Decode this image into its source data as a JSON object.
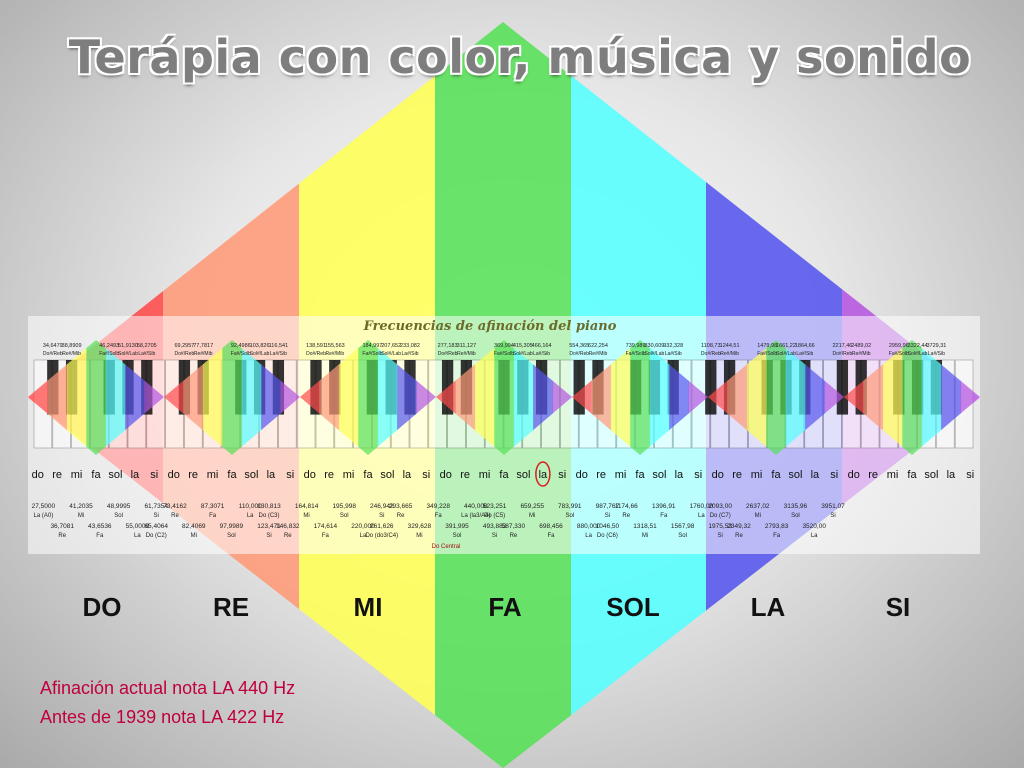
{
  "title": "Terápia con color, música y sonido",
  "piano_chart_title": "Frecuencias de afinación del piano",
  "color_bands": [
    "#ff4a4a",
    "#ff9a78",
    "#ffff55",
    "#55e055",
    "#55ffff",
    "#5555ee",
    "#b455e0"
  ],
  "note_labels": [
    "DO",
    "RE",
    "MI",
    "FA",
    "SOL",
    "LA",
    "SI"
  ],
  "octave_solfege": [
    "do",
    "re",
    "mi",
    "fa",
    "sol",
    "la",
    "si"
  ],
  "octaves": 7,
  "sharp_frequencies": [
    {
      "freq": "34,6479",
      "name": "Do#/Reb"
    },
    {
      "freq": "38,8909",
      "name": "Re#/Mib"
    },
    {
      "freq": "46,2493",
      "name": "Fa#/Solb"
    },
    {
      "freq": "51,9130",
      "name": "Sol#/Lab"
    },
    {
      "freq": "58,2705",
      "name": "La#/Sib"
    },
    {
      "freq": "69,2957",
      "name": "Do#/Reb"
    },
    {
      "freq": "77,7817",
      "name": "Re#/Mib"
    },
    {
      "freq": "92,4986",
      "name": "Fa#/Solb"
    },
    {
      "freq": "103,826",
      "name": "Sol#/Lab"
    },
    {
      "freq": "116,541",
      "name": "La#/Sib"
    },
    {
      "freq": "138,591",
      "name": "Do#/Reb"
    },
    {
      "freq": "155,563",
      "name": "Re#/Mib"
    },
    {
      "freq": "184,997",
      "name": "Fa#/Solb"
    },
    {
      "freq": "207,652",
      "name": "Sol#/Lab"
    },
    {
      "freq": "233,082",
      "name": "La#/Sib"
    },
    {
      "freq": "277,183",
      "name": "Do#/Reb"
    },
    {
      "freq": "311,127",
      "name": "Re#/Mib"
    },
    {
      "freq": "369,994",
      "name": "Fa#/Solb"
    },
    {
      "freq": "415,305",
      "name": "Sol#/Lab"
    },
    {
      "freq": "466,164",
      "name": "La#/Sib"
    },
    {
      "freq": "554,365",
      "name": "Do#/Reb"
    },
    {
      "freq": "622,254",
      "name": "Re#/Mib"
    },
    {
      "freq": "739,989",
      "name": "Fa#/Solb"
    },
    {
      "freq": "830,609",
      "name": "Sol#/Lab"
    },
    {
      "freq": "932,328",
      "name": "La#/Sib"
    },
    {
      "freq": "1108,73",
      "name": "Do#/Reb"
    },
    {
      "freq": "1244,51",
      "name": "Re#/Mib"
    },
    {
      "freq": "1479,98",
      "name": "Fa#/Solb"
    },
    {
      "freq": "1661,22",
      "name": "Sol#/Lab"
    },
    {
      "freq": "1864,66",
      "name": "La#/Sib"
    },
    {
      "freq": "2217,46",
      "name": "Do#/Reb"
    },
    {
      "freq": "2489,02",
      "name": "Re#/Mib"
    },
    {
      "freq": "2959,96",
      "name": "Fa#/Solb"
    },
    {
      "freq": "3322,44",
      "name": "Sol#/Lab"
    },
    {
      "freq": "3729,31",
      "name": "La#/Sib"
    }
  ],
  "white_frequencies_upper": [
    {
      "freq": "27,5000",
      "name": "La (A0)"
    },
    {
      "freq": "41,2035",
      "name": "Mi"
    },
    {
      "freq": "48,9995",
      "name": "Sol"
    },
    {
      "freq": "61,7354",
      "name": "Si"
    },
    {
      "freq": "73,4162",
      "name": "Re"
    },
    {
      "freq": "87,3071",
      "name": "Fa"
    },
    {
      "freq": "110,000",
      "name": "La"
    },
    {
      "freq": "130,813",
      "name": "Do (C3)"
    },
    {
      "freq": "164,814",
      "name": "Mi"
    },
    {
      "freq": "195,998",
      "name": "Sol"
    },
    {
      "freq": "246,942",
      "name": "Si"
    },
    {
      "freq": "293,665",
      "name": "Re"
    },
    {
      "freq": "349,228",
      "name": "Fa"
    },
    {
      "freq": "440,000",
      "name": "La (la3/A4)"
    },
    {
      "freq": "523,251",
      "name": "Do (C5)"
    },
    {
      "freq": "659,255",
      "name": "Mi"
    },
    {
      "freq": "783,991",
      "name": "Sol"
    },
    {
      "freq": "987,767",
      "name": "Si"
    },
    {
      "freq": "1174,66",
      "name": "Re"
    },
    {
      "freq": "1396,91",
      "name": "Fa"
    },
    {
      "freq": "1760,00",
      "name": "La"
    },
    {
      "freq": "2093,00",
      "name": "Do (C7)"
    },
    {
      "freq": "2637,02",
      "name": "Mi"
    },
    {
      "freq": "3135,96",
      "name": "Sol"
    },
    {
      "freq": "3951,07",
      "name": "Si"
    }
  ],
  "white_frequencies_lower": [
    {
      "freq": "36,7081",
      "name": "Re"
    },
    {
      "freq": "43,6536",
      "name": "Fa"
    },
    {
      "freq": "55,0000",
      "name": "La"
    },
    {
      "freq": "65,4064",
      "name": "Do (C2)"
    },
    {
      "freq": "82,4069",
      "name": "Mi"
    },
    {
      "freq": "97,9989",
      "name": "Sol"
    },
    {
      "freq": "123,471",
      "name": "Si"
    },
    {
      "freq": "146,832",
      "name": "Re"
    },
    {
      "freq": "174,614",
      "name": "Fa"
    },
    {
      "freq": "220,000",
      "name": "La"
    },
    {
      "freq": "261,626",
      "name": "Do (do3/C4)"
    },
    {
      "freq": "329,628",
      "name": "Mi"
    },
    {
      "freq": "391,995",
      "name": "Sol"
    },
    {
      "freq": "493,883",
      "name": "Si"
    },
    {
      "freq": "587,330",
      "name": "Re"
    },
    {
      "freq": "698,456",
      "name": "Fa"
    },
    {
      "freq": "880,000",
      "name": "La"
    },
    {
      "freq": "1046,50",
      "name": "Do (C6)"
    },
    {
      "freq": "1318,51",
      "name": "Mi"
    },
    {
      "freq": "1567,98",
      "name": "Sol"
    },
    {
      "freq": "1975,53",
      "name": "Si"
    },
    {
      "freq": "2349,32",
      "name": "Re"
    },
    {
      "freq": "2793,83",
      "name": "Fa"
    },
    {
      "freq": "3520,00",
      "name": "La"
    }
  ],
  "do_central_label": "Do Central",
  "highlighted_solfege": {
    "octave": 4,
    "note": "la"
  },
  "info_line_1": "Afinación actual nota LA 440 Hz",
  "info_line_2": "Antes de 1939 nota LA 422 Hz"
}
